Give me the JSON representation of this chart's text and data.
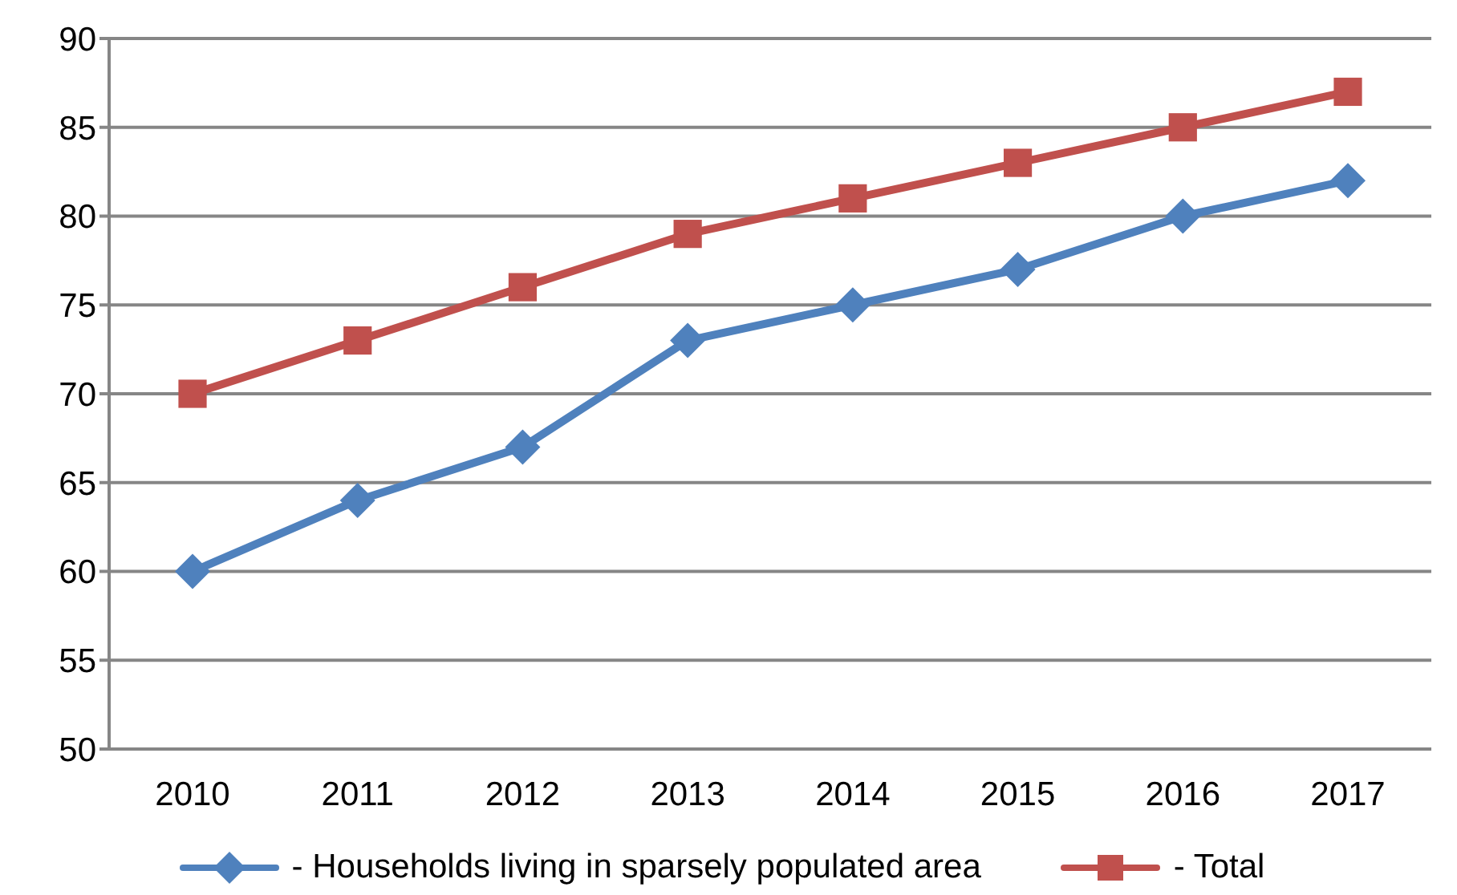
{
  "chart_data": {
    "type": "line",
    "categories": [
      "2010",
      "2011",
      "2012",
      "2013",
      "2014",
      "2015",
      "2016",
      "2017"
    ],
    "series": [
      {
        "name": "- Households living in sparsely populated area",
        "color": "#4f81bd",
        "marker": "diamond",
        "values": [
          60,
          64,
          67,
          73,
          75,
          77,
          80,
          82
        ]
      },
      {
        "name": "- Total",
        "color": "#c0504d",
        "marker": "square",
        "values": [
          70,
          73,
          76,
          79,
          81,
          83,
          85,
          87
        ]
      }
    ],
    "ylim": [
      50,
      90
    ],
    "yticks": [
      50,
      55,
      60,
      65,
      70,
      75,
      80,
      85,
      90
    ],
    "grid": "y",
    "legend": "bottom",
    "line_style": "solid"
  }
}
